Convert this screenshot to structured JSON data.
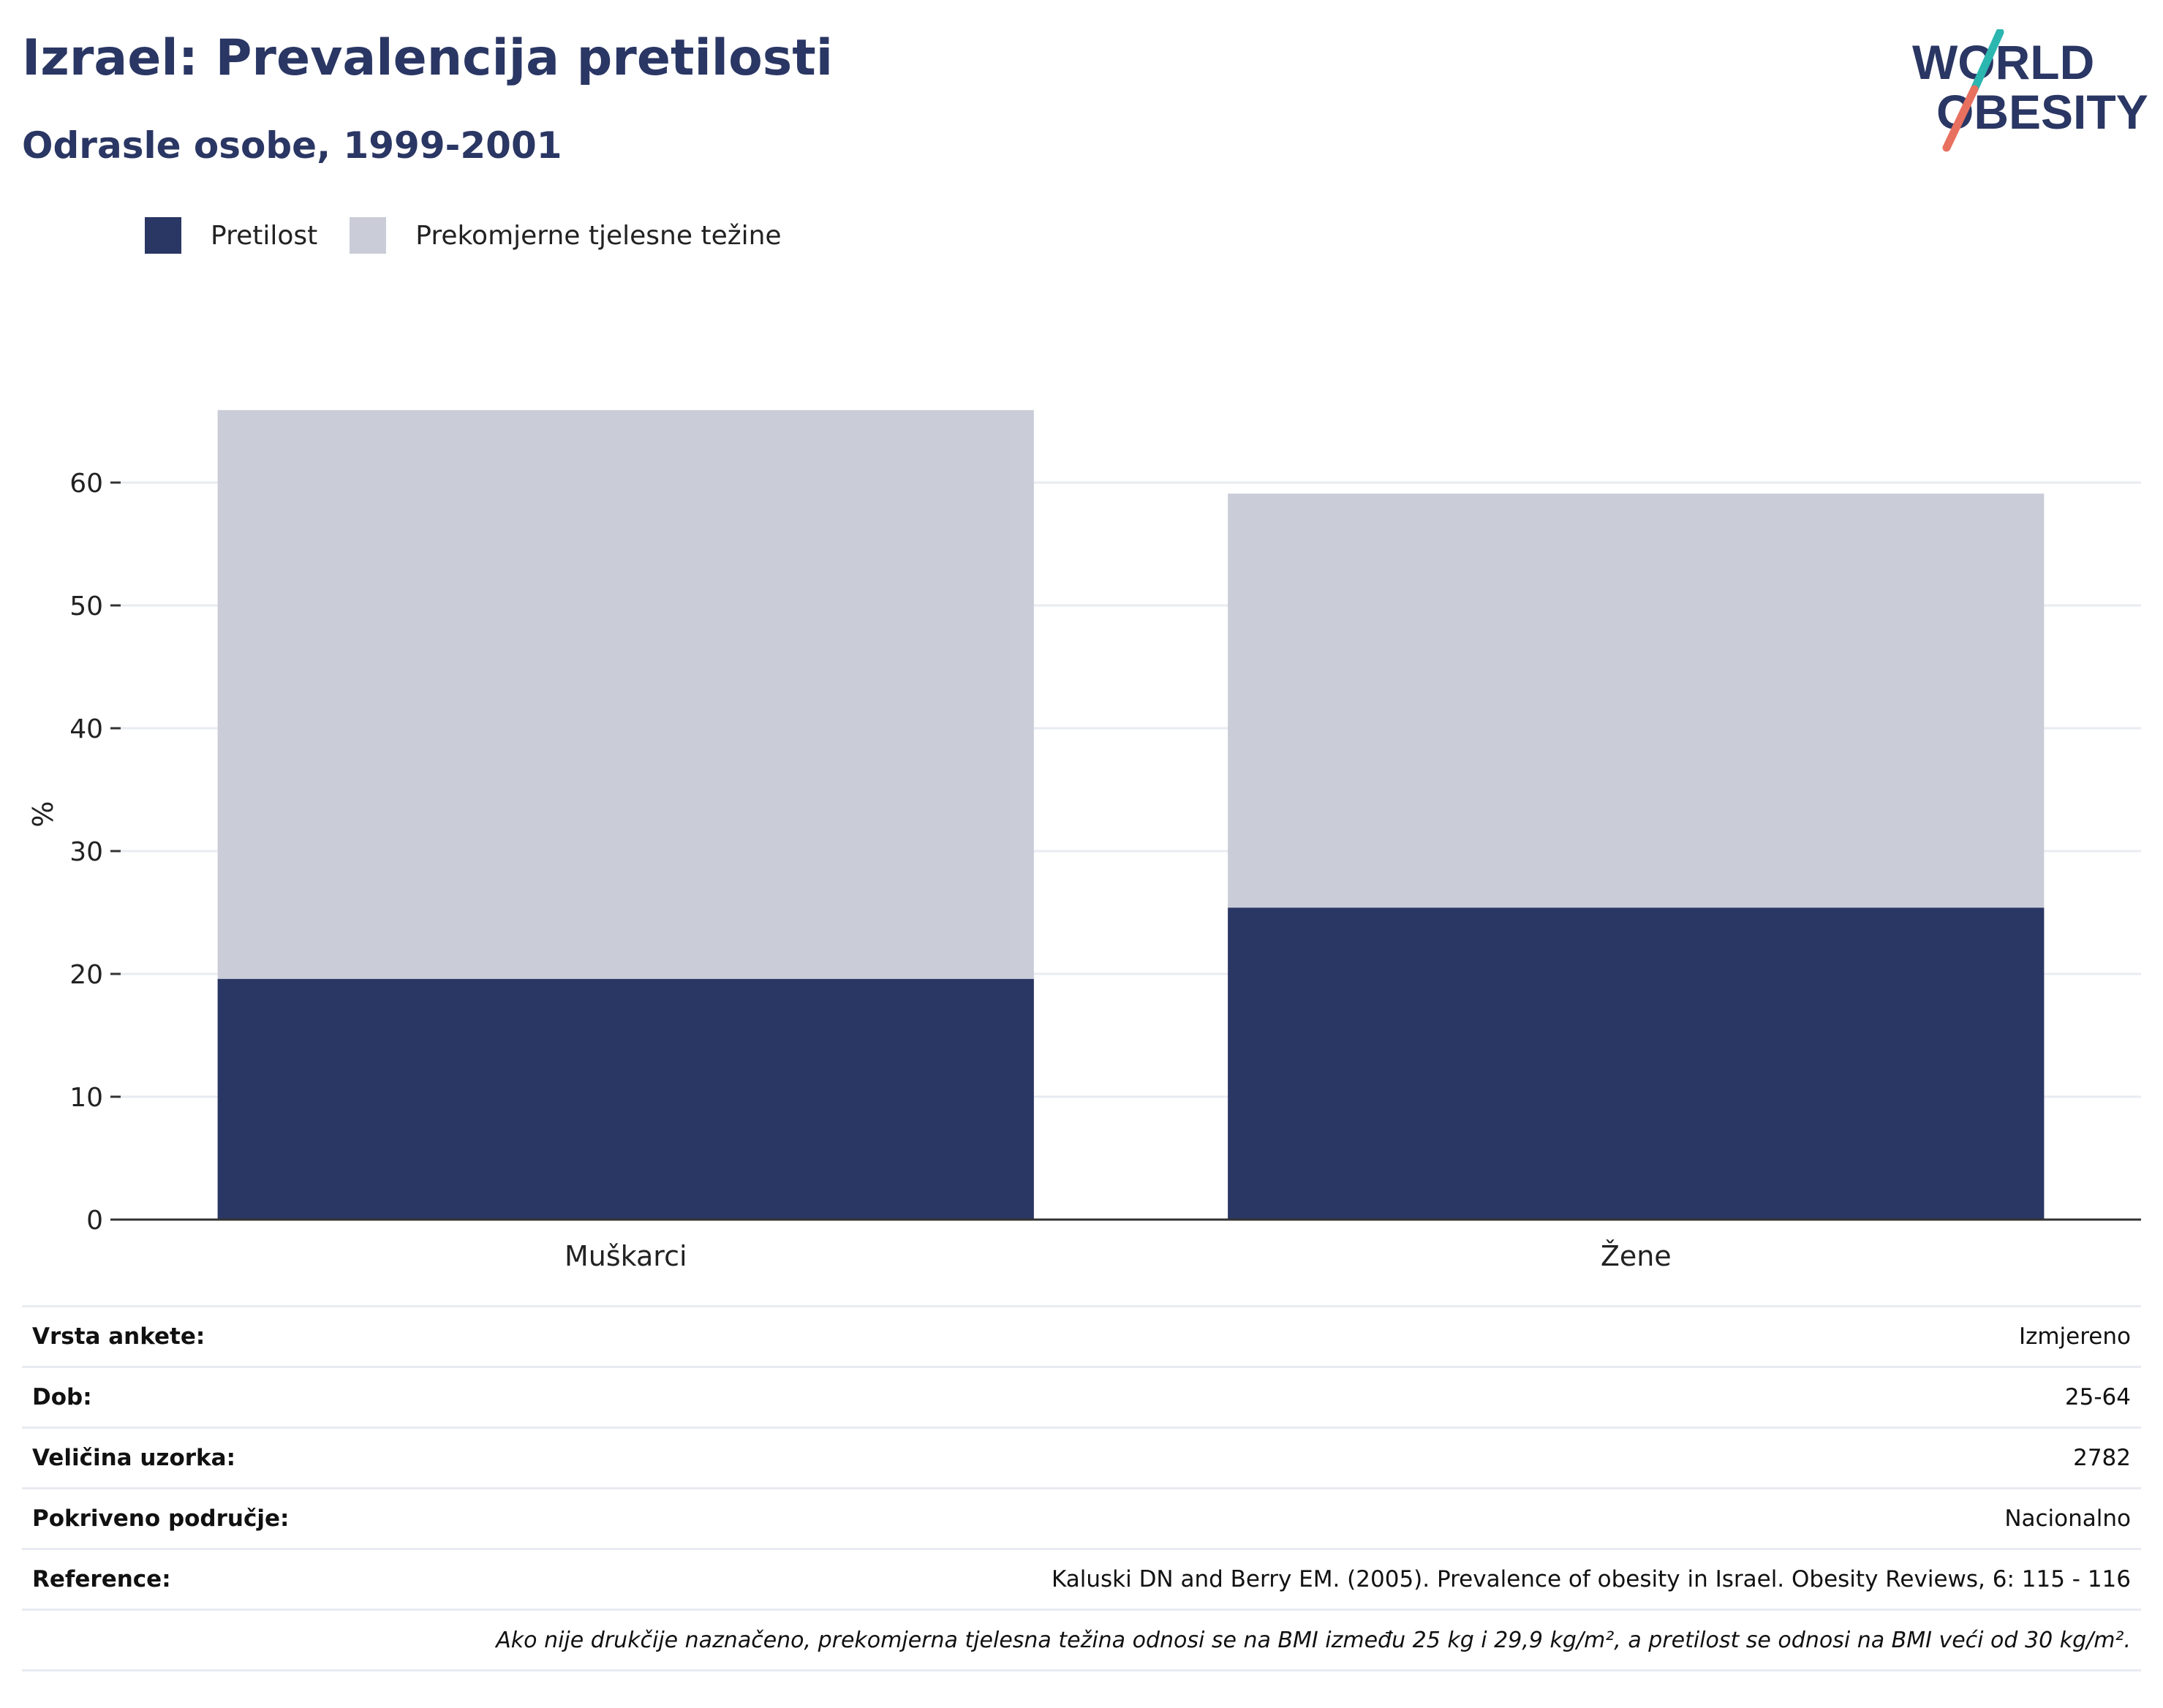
{
  "header": {
    "title": "Izrael: Prevalencija pretilosti",
    "subtitle": "Odrasle osobe, 1999-2001"
  },
  "logo": {
    "line1": "WORLD",
    "line2": "OBESITY",
    "slash_colors": [
      "#2bb6b0",
      "#e8705f"
    ],
    "text_color": "#2a3663"
  },
  "legend": {
    "items": [
      {
        "label": "Pretilost",
        "color": "#2a3663"
      },
      {
        "label": "Prekomjerne tjelesne težine",
        "color": "#cacdd8"
      }
    ]
  },
  "chart_data": {
    "type": "bar",
    "stacked": true,
    "categories": [
      "Muškarci",
      "Žene"
    ],
    "series": [
      {
        "name": "Pretilost",
        "values": [
          19.6,
          25.4
        ],
        "color": "#2a3663"
      },
      {
        "name": "Prekomjerne tjelesne težine",
        "values": [
          46.3,
          33.7
        ],
        "color": "#cacdd8"
      }
    ],
    "ylabel": "%",
    "xlabel": "",
    "ylim": [
      0,
      66
    ],
    "yticks": [
      0,
      10,
      20,
      30,
      40,
      50,
      60
    ],
    "grid": true,
    "legend_position": "top-left"
  },
  "info": {
    "rows": [
      {
        "label": "Vrsta ankete:",
        "value": "Izmjereno"
      },
      {
        "label": "Dob:",
        "value": "25-64"
      },
      {
        "label": "Veličina uzorka:",
        "value": "2782"
      },
      {
        "label": "Pokriveno područje:",
        "value": "Nacionalno"
      },
      {
        "label": "Reference:",
        "value": "Kaluski DN and Berry EM. (2005). Prevalence of obesity in Israel. Obesity Reviews, 6: 115 - 116"
      }
    ],
    "footnote": "Ako nije drukčije naznačeno, prekomjerna tjelesna težina odnosi se na BMI između 25 kg i 29,9 kg/m², a pretilost se odnosi na BMI veći od 30 kg/m²."
  }
}
